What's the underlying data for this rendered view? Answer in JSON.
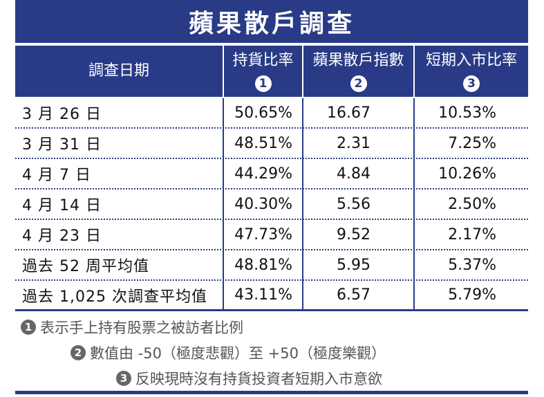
{
  "title": "蘋果散戶調查",
  "headers": {
    "date": "調查日期",
    "col1": "持貨比率",
    "col1_num": "1",
    "col2": "蘋果散戶指數",
    "col2_num": "2",
    "col3": "短期入市比率",
    "col3_num": "3"
  },
  "rows": [
    {
      "date": "3 月 26 日",
      "c1": "50.65%",
      "c2": "16.67",
      "c3": "10.53%"
    },
    {
      "date": "3 月 31 日",
      "c1": "48.51%",
      "c2": "2.31",
      "c3": "7.25%"
    },
    {
      "date": "4 月 7 日",
      "c1": "44.29%",
      "c2": "4.84",
      "c3": "10.26%"
    },
    {
      "date": "4 月 14 日",
      "c1": "40.30%",
      "c2": "5.56",
      "c3": "2.50%"
    },
    {
      "date": "4 月 23 日",
      "c1": "47.73%",
      "c2": "9.52",
      "c3": "2.17%"
    },
    {
      "date": "過去 52 周平均值",
      "c1": "48.81%",
      "c2": "5.95",
      "c3": "5.37%"
    },
    {
      "date": "過去 1,025 次調查平均值",
      "c1": "43.11%",
      "c2": "6.57",
      "c3": "5.79%"
    }
  ],
  "notes": [
    {
      "num": "1",
      "text": "表示手上持有股票之被訪者比例"
    },
    {
      "num": "2",
      "text": "數值由 -50（極度悲觀）至 +50（極度樂觀）"
    },
    {
      "num": "3",
      "text": "反映現時沒有持貨投資者短期入市意欲"
    }
  ],
  "colors": {
    "accent": "#293b86",
    "note_gray": "#666666"
  }
}
